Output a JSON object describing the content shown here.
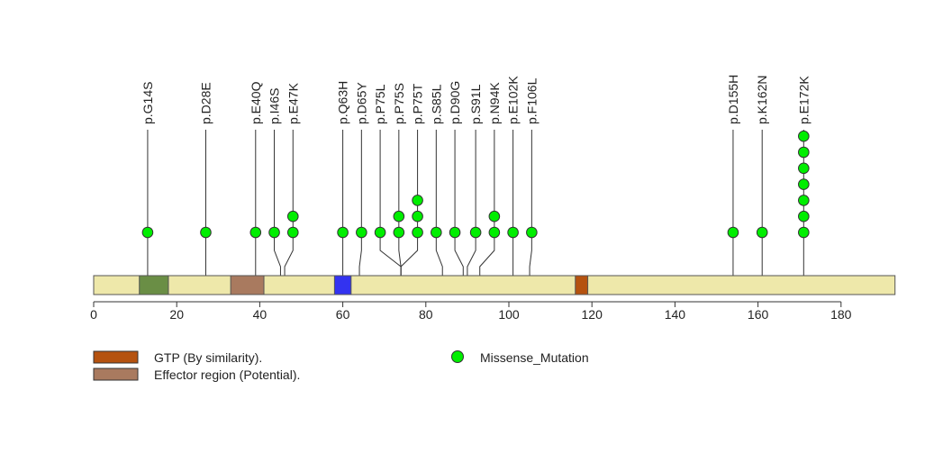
{
  "chart_data": {
    "type": "lollipop",
    "title": "",
    "xlabel": "",
    "ylabel": "",
    "xlim": [
      0,
      193
    ],
    "xticks": [
      0,
      20,
      40,
      60,
      80,
      100,
      120,
      140,
      160,
      180
    ],
    "protein_length": 193,
    "colors": {
      "backbone": "#EEE8AA",
      "gtp": "#B5520F",
      "effector": "#A97A5F",
      "domain_green": "#6A8E45",
      "domain_blue": "#3333F0",
      "mutation": "#00EE00",
      "line": "#333333"
    },
    "domains": [
      {
        "name": "",
        "start": 11,
        "end": 18,
        "color_key": "domain_green"
      },
      {
        "name": "Effector region (Potential).",
        "start": 33,
        "end": 41,
        "color_key": "effector"
      },
      {
        "name": "",
        "start": 58,
        "end": 62,
        "color_key": "domain_blue"
      },
      {
        "name": "GTP (By similarity).",
        "start": 116,
        "end": 119,
        "color_key": "gtp"
      }
    ],
    "mutations": [
      {
        "label": "p.G14S",
        "position": 13,
        "count": 1,
        "display_x": 13
      },
      {
        "label": "p.D28E",
        "position": 27,
        "count": 1,
        "display_x": 27
      },
      {
        "label": "p.E40Q",
        "position": 39,
        "count": 1,
        "display_x": 39
      },
      {
        "label": "p.I46S",
        "position": 45,
        "count": 1,
        "display_x": 43.5
      },
      {
        "label": "p.E47K",
        "position": 46,
        "count": 2,
        "display_x": 48
      },
      {
        "label": "p.Q63H",
        "position": 60,
        "count": 1,
        "display_x": 60
      },
      {
        "label": "p.D65Y",
        "position": 64,
        "count": 1,
        "display_x": 64.5
      },
      {
        "label": "p.P75L",
        "position": 74,
        "count": 1,
        "display_x": 69
      },
      {
        "label": "p.P75S",
        "position": 74,
        "count": 2,
        "display_x": 73.5
      },
      {
        "label": "p.P75T",
        "position": 74,
        "count": 3,
        "display_x": 78
      },
      {
        "label": "p.S85L",
        "position": 84,
        "count": 1,
        "display_x": 82.5
      },
      {
        "label": "p.D90G",
        "position": 89,
        "count": 1,
        "display_x": 87
      },
      {
        "label": "p.S91L",
        "position": 90,
        "count": 1,
        "display_x": 92
      },
      {
        "label": "p.N94K",
        "position": 93,
        "count": 2,
        "display_x": 96.5
      },
      {
        "label": "p.E102K",
        "position": 101,
        "count": 1,
        "display_x": 101
      },
      {
        "label": "p.F106L",
        "position": 105,
        "count": 1,
        "display_x": 105.5
      },
      {
        "label": "p.D155H",
        "position": 154,
        "count": 1,
        "display_x": 154
      },
      {
        "label": "p.K162N",
        "position": 161,
        "count": 1,
        "display_x": 161
      },
      {
        "label": "p.E172K",
        "position": 171,
        "count": 7,
        "display_x": 171
      }
    ],
    "legend": {
      "placement": "bottom",
      "items": [
        {
          "label": "GTP (By similarity).",
          "kind": "box",
          "color_key": "gtp"
        },
        {
          "label": "Effector region (Potential).",
          "kind": "box",
          "color_key": "effector"
        },
        {
          "label": "Missense_Mutation",
          "kind": "circle",
          "color_key": "mutation"
        }
      ]
    }
  }
}
